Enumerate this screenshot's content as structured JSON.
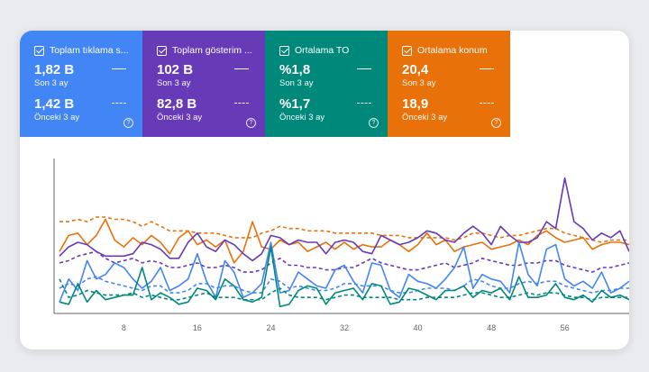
{
  "metrics": [
    {
      "title": "Toplam tıklama s...",
      "current_value": "1,82 B",
      "current_label": "Son 3 ay",
      "previous_value": "1,42 B",
      "previous_label": "Önceki 3 ay",
      "color": "#4285f4"
    },
    {
      "title": "Toplam gösterim ...",
      "current_value": "102 B",
      "current_label": "Son 3 ay",
      "previous_value": "82,8 B",
      "previous_label": "Önceki 3 ay",
      "color": "#673ab7"
    },
    {
      "title": "Ortalama TO",
      "current_value": "%1,8",
      "current_label": "Son 3 ay",
      "previous_value": "%1,7",
      "previous_label": "Önceki 3 ay",
      "color": "#00897b"
    },
    {
      "title": "Ortalama konum",
      "current_value": "20,4",
      "current_label": "Son 3 ay",
      "previous_value": "18,9",
      "previous_label": "Önceki 3 ay",
      "color": "#e8710a"
    }
  ],
  "help_icon": "?",
  "chart_data": {
    "type": "line",
    "x_ticks": [
      "8",
      "16",
      "24",
      "32",
      "40",
      "48",
      "56"
    ],
    "x": [
      1,
      2,
      3,
      4,
      5,
      6,
      7,
      8,
      9,
      10,
      11,
      12,
      13,
      14,
      15,
      16,
      17,
      18,
      19,
      20,
      21,
      22,
      23,
      24,
      25,
      26,
      27,
      28,
      29,
      30,
      31,
      32,
      33,
      34,
      35,
      36,
      37,
      38,
      39,
      40,
      41,
      42,
      43,
      44,
      45,
      46,
      47,
      48,
      49,
      50,
      51,
      52,
      53,
      54,
      55,
      56,
      57,
      58,
      59,
      60,
      61,
      62,
      63
    ],
    "series": [
      {
        "color": "#e8710a",
        "style": "solid",
        "values": [
          54,
          68,
          70,
          60,
          68,
          82,
          64,
          58,
          66,
          60,
          68,
          62,
          52,
          66,
          72,
          60,
          64,
          58,
          64,
          44,
          54,
          80,
          58,
          56,
          64,
          60,
          62,
          54,
          58,
          62,
          56,
          62,
          56,
          60,
          58,
          58,
          64,
          60,
          54,
          60,
          70,
          60,
          64,
          54,
          58,
          60,
          62,
          56,
          58,
          60,
          64,
          60,
          68,
          72,
          66,
          62,
          64,
          66,
          56,
          60,
          62,
          62,
          60
        ]
      },
      {
        "color": "#e8710a",
        "style": "dashed",
        "values": [
          80,
          80,
          82,
          80,
          84,
          84,
          82,
          82,
          80,
          76,
          80,
          76,
          72,
          72,
          72,
          70,
          70,
          70,
          68,
          66,
          66,
          66,
          70,
          72,
          76,
          74,
          74,
          72,
          72,
          72,
          70,
          70,
          70,
          70,
          70,
          68,
          68,
          68,
          66,
          66,
          66,
          66,
          66,
          64,
          66,
          70,
          70,
          68,
          66,
          68,
          68,
          70,
          72,
          74,
          74,
          70,
          68,
          66,
          64,
          62,
          64,
          64,
          64
        ]
      },
      {
        "color": "#673ab7",
        "style": "solid",
        "values": [
          50,
          58,
          62,
          60,
          54,
          50,
          50,
          50,
          52,
          62,
          60,
          56,
          48,
          48,
          62,
          70,
          58,
          54,
          64,
          60,
          52,
          46,
          52,
          68,
          66,
          60,
          64,
          62,
          62,
          52,
          62,
          64,
          62,
          54,
          52,
          68,
          64,
          60,
          62,
          66,
          72,
          70,
          64,
          62,
          70,
          76,
          70,
          60,
          76,
          68,
          62,
          62,
          66,
          80,
          74,
          118,
          80,
          74,
          64,
          70,
          66,
          72,
          54
        ]
      },
      {
        "color": "#673ab7",
        "style": "dashed",
        "values": [
          44,
          46,
          50,
          52,
          54,
          48,
          44,
          46,
          48,
          44,
          46,
          44,
          40,
          40,
          42,
          44,
          40,
          40,
          42,
          40,
          36,
          36,
          38,
          44,
          48,
          42,
          42,
          40,
          40,
          38,
          38,
          40,
          40,
          44,
          48,
          44,
          42,
          40,
          38,
          38,
          40,
          42,
          44,
          40,
          42,
          44,
          48,
          46,
          44,
          42,
          42,
          44,
          44,
          46,
          46,
          42,
          40,
          38,
          36,
          40,
          40,
          42,
          44
        ]
      },
      {
        "color": "#4285f4",
        "style": "solid",
        "values": [
          10,
          30,
          20,
          46,
          30,
          34,
          44,
          40,
          30,
          22,
          28,
          40,
          20,
          24,
          30,
          52,
          28,
          14,
          46,
          36,
          14,
          18,
          26,
          62,
          18,
          20,
          36,
          30,
          24,
          22,
          38,
          42,
          28,
          18,
          44,
          42,
          20,
          14,
          34,
          28,
          26,
          22,
          30,
          40,
          58,
          22,
          34,
          30,
          28,
          18,
          62,
          34,
          24,
          56,
          60,
          30,
          24,
          28,
          22,
          36,
          18,
          22,
          28
        ]
      },
      {
        "color": "#4285f4",
        "style": "dashed",
        "values": [
          22,
          26,
          24,
          30,
          32,
          28,
          26,
          24,
          22,
          20,
          24,
          24,
          18,
          18,
          20,
          26,
          26,
          22,
          24,
          24,
          20,
          18,
          18,
          30,
          28,
          22,
          24,
          22,
          20,
          20,
          22,
          26,
          26,
          24,
          24,
          24,
          20,
          18,
          18,
          20,
          22,
          22,
          22,
          20,
          24,
          30,
          28,
          24,
          22,
          22,
          26,
          28,
          26,
          28,
          28,
          24,
          22,
          20,
          18,
          20,
          20,
          22,
          22
        ]
      },
      {
        "color": "#00897b",
        "style": "solid",
        "values": [
          10,
          8,
          26,
          10,
          20,
          12,
          14,
          16,
          16,
          40,
          12,
          18,
          14,
          8,
          10,
          22,
          20,
          12,
          30,
          24,
          12,
          10,
          14,
          58,
          6,
          8,
          20,
          24,
          22,
          8,
          18,
          20,
          22,
          12,
          26,
          24,
          8,
          10,
          22,
          20,
          16,
          12,
          20,
          20,
          24,
          14,
          20,
          18,
          22,
          12,
          32,
          14,
          14,
          16,
          26,
          14,
          12,
          16,
          10,
          20,
          14,
          16,
          12
        ]
      },
      {
        "color": "#00897b",
        "style": "dashed",
        "values": [
          30,
          14,
          16,
          20,
          18,
          16,
          16,
          16,
          18,
          14,
          16,
          14,
          12,
          12,
          14,
          16,
          18,
          14,
          14,
          14,
          12,
          12,
          12,
          18,
          22,
          16,
          14,
          14,
          14,
          12,
          14,
          16,
          16,
          14,
          14,
          14,
          14,
          12,
          12,
          12,
          14,
          14,
          14,
          14,
          16,
          18,
          18,
          16,
          14,
          14,
          16,
          18,
          16,
          18,
          18,
          16,
          14,
          14,
          12,
          14,
          14,
          14,
          14
        ]
      }
    ],
    "ylim": [
      0,
      135
    ],
    "grid": false,
    "legend": "top"
  }
}
